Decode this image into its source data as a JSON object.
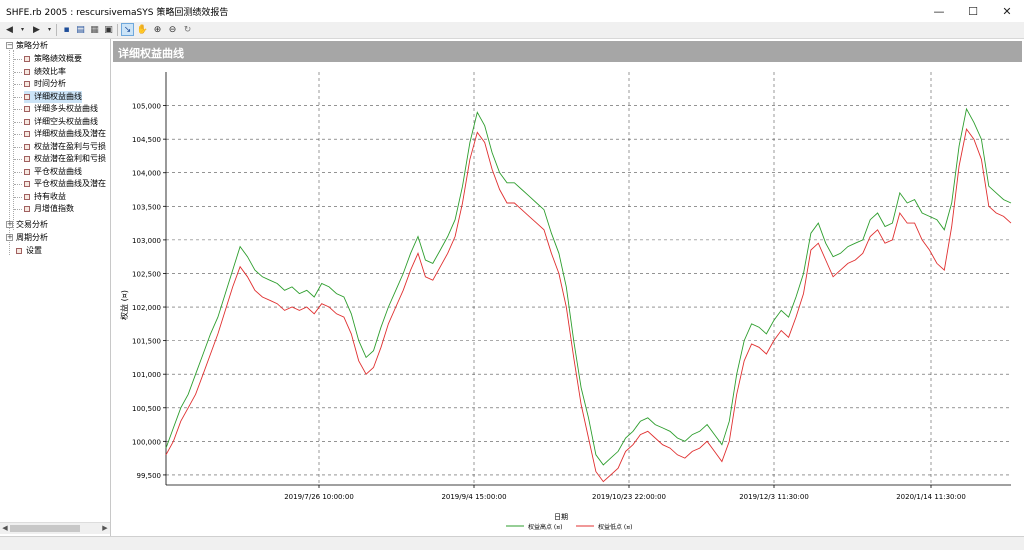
{
  "window": {
    "title": "SHFE.rb 2005 : rescursivemaSYS  策略回测绩效报告"
  },
  "window_buttons": {
    "minimize": "—",
    "maximize": "☐",
    "close": "✕"
  },
  "toolbar": {
    "icons": [
      "back-arrow-icon",
      "forward-arrow-icon",
      "save-icon",
      "print-preview-icon",
      "print-icon",
      "report-icon",
      "pointer-icon",
      "hand-pan-icon",
      "zoom-in-icon",
      "zoom-out-icon",
      "reset-zoom-icon"
    ]
  },
  "tree": {
    "root": "策略分析",
    "items": [
      "策略绩效概要",
      "绩效比率",
      "时间分析",
      "详细权益曲线",
      "详细多头权益曲线",
      "详细空头权益曲线",
      "详细权益曲线及潜在",
      "权益潜在盈利与亏损",
      "权益潜在盈利和亏损",
      "平仓权益曲线",
      "平仓权益曲线及潜在",
      "持有收益",
      "月增值指数"
    ],
    "selected_index": 3,
    "groups": [
      "交易分析",
      "周期分析"
    ],
    "settings": "设置"
  },
  "panel": {
    "header": "详细权益曲线"
  },
  "chart_data": {
    "type": "line",
    "xlabel": "日期",
    "ylabel": "权益 (¤)",
    "ylim": [
      99350,
      105500
    ],
    "yticks": [
      99500,
      100000,
      100500,
      101000,
      101500,
      102000,
      102500,
      103000,
      103500,
      104000,
      104500,
      105000
    ],
    "ytick_labels": [
      "99,500",
      "100,000",
      "100,500",
      "101,000",
      "101,500",
      "102,000",
      "102,500",
      "103,000",
      "103,500",
      "104,000",
      "104,500",
      "105,000"
    ],
    "xtick_labels": [
      "2019/7/26 10:00:00",
      "2019/9/4 15:00:00",
      "2019/10/23 22:00:00",
      "2019/12/3 11:30:00",
      "2020/1/14 11:30:00"
    ],
    "grid": true,
    "legend_position": "bottom",
    "series": [
      {
        "name": "权益高点 (¤)",
        "color": "#2e9e2e",
        "values": [
          99900,
          100200,
          100500,
          100700,
          101000,
          101300,
          101600,
          101850,
          102200,
          102550,
          102900,
          102750,
          102550,
          102450,
          102400,
          102350,
          102250,
          102300,
          102200,
          102250,
          102150,
          102350,
          102300,
          102200,
          102150,
          101900,
          101500,
          101250,
          101350,
          101700,
          102000,
          102250,
          102500,
          102800,
          103050,
          102700,
          102650,
          102850,
          103050,
          103300,
          103800,
          104450,
          104900,
          104700,
          104300,
          104000,
          103850,
          103850,
          103750,
          103650,
          103550,
          103450,
          103100,
          102800,
          102300,
          101500,
          100800,
          100350,
          99800,
          99650,
          99750,
          99850,
          100050,
          100150,
          100300,
          100350,
          100250,
          100200,
          100150,
          100050,
          100000,
          100100,
          100150,
          100250,
          100100,
          99950,
          100300,
          101000,
          101500,
          101750,
          101700,
          101600,
          101800,
          101950,
          101850,
          102150,
          102500,
          103100,
          103250,
          102950,
          102750,
          102800,
          102900,
          102950,
          103000,
          103300,
          103400,
          103200,
          103250,
          103700,
          103550,
          103600,
          103400,
          103350,
          103300,
          103150,
          103550,
          104400,
          104950,
          104750,
          104500,
          103800,
          103700,
          103600,
          103550
        ]
      },
      {
        "name": "权益低点 (¤)",
        "color": "#e03030",
        "values": [
          99800,
          100000,
          100300,
          100500,
          100700,
          101000,
          101300,
          101600,
          101950,
          102300,
          102600,
          102450,
          102250,
          102150,
          102100,
          102050,
          101950,
          102000,
          101950,
          102000,
          101900,
          102050,
          102000,
          101900,
          101850,
          101600,
          101200,
          101000,
          101100,
          101400,
          101750,
          102000,
          102250,
          102550,
          102800,
          102450,
          102400,
          102600,
          102800,
          103050,
          103550,
          104200,
          104600,
          104450,
          104050,
          103750,
          103550,
          103550,
          103450,
          103350,
          103250,
          103150,
          102800,
          102500,
          102000,
          101250,
          100550,
          100050,
          99550,
          99400,
          99500,
          99600,
          99850,
          99950,
          100100,
          100150,
          100050,
          99950,
          99900,
          99800,
          99750,
          99850,
          99900,
          100000,
          99850,
          99700,
          100000,
          100700,
          101200,
          101450,
          101400,
          101300,
          101500,
          101650,
          101550,
          101850,
          102200,
          102850,
          102950,
          102700,
          102450,
          102550,
          102650,
          102700,
          102800,
          103050,
          103150,
          102950,
          103000,
          103400,
          103250,
          103250,
          103000,
          102850,
          102650,
          102550,
          103200,
          104100,
          104650,
          104500,
          104200,
          103500,
          103400,
          103350,
          103250
        ]
      }
    ]
  },
  "status": ""
}
